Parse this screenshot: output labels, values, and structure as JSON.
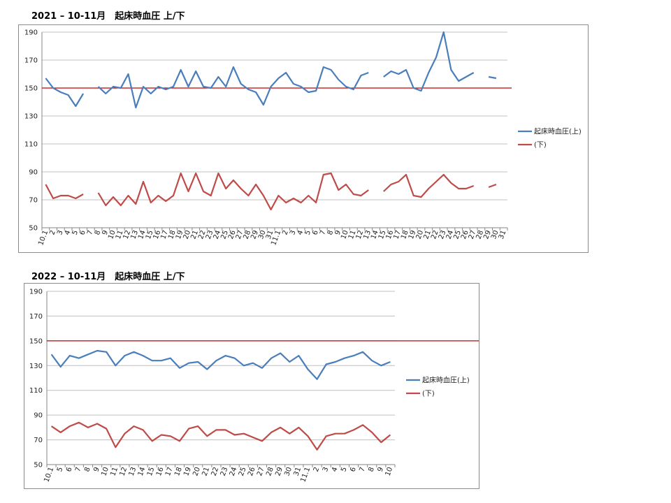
{
  "headings": {
    "chart1": "2021 – 10-11月　起床時血圧 上/下",
    "chart2": "2022 – 10-11月　起床時血圧 上/下"
  },
  "colors": {
    "upper": "#4a7ebb",
    "lower": "#be4b48",
    "reference": "#c00000",
    "grid": "#c0c0c0"
  },
  "chart_data": [
    {
      "type": "line",
      "title": "2021 – 10-11月　起床時血圧 上/下",
      "ylim": [
        50,
        190
      ],
      "yticks": [
        50,
        70,
        90,
        110,
        130,
        150,
        170,
        190
      ],
      "reference_line": 150,
      "legend_position": "right",
      "categories": [
        "10.1",
        "2",
        "3",
        "4",
        "5",
        "6",
        "7",
        "8",
        "9",
        "10",
        "11",
        "12",
        "13",
        "14",
        "15",
        "16",
        "17",
        "18",
        "19",
        "20",
        "21",
        "22",
        "23",
        "24",
        "25",
        "26",
        "27",
        "28",
        "29",
        "30",
        "31",
        "11.1",
        "2",
        "3",
        "4",
        "5",
        "6",
        "7",
        "8",
        "9",
        "10",
        "11",
        "12",
        "13",
        "14",
        "15",
        "16",
        "17",
        "18",
        "19",
        "20",
        "21",
        "22",
        "23",
        "24",
        "25",
        "26",
        "27",
        "28",
        "29",
        "30",
        "31"
      ],
      "series": [
        {
          "name": "起床時血圧(上)",
          "color": "#4a7ebb",
          "values": [
            157,
            150,
            147,
            145,
            137,
            146,
            null,
            151,
            146,
            151,
            150,
            160,
            136,
            151,
            146,
            151,
            149,
            151,
            163,
            151,
            162,
            151,
            150,
            158,
            151,
            165,
            153,
            149,
            147,
            138,
            151,
            157,
            161,
            153,
            151,
            147,
            148,
            165,
            163,
            156,
            151,
            149,
            159,
            161,
            null,
            158,
            162,
            160,
            163,
            150,
            148,
            161,
            172,
            190,
            163,
            155,
            158,
            161,
            null,
            158,
            157,
            null
          ]
        },
        {
          "name": "(下)",
          "color": "#be4b48",
          "values": [
            81,
            71,
            73,
            73,
            71,
            74,
            null,
            75,
            66,
            72,
            66,
            73,
            67,
            83,
            68,
            73,
            69,
            73,
            89,
            76,
            89,
            76,
            73,
            89,
            78,
            84,
            78,
            73,
            81,
            73,
            63,
            73,
            68,
            71,
            68,
            73,
            68,
            88,
            89,
            77,
            81,
            74,
            73,
            77,
            null,
            76,
            81,
            83,
            88,
            73,
            72,
            78,
            83,
            88,
            82,
            78,
            78,
            80,
            null,
            79,
            81,
            null
          ]
        }
      ]
    },
    {
      "type": "line",
      "title": "2022 – 10-11月　起床時血圧 上/下",
      "ylim": [
        50,
        190
      ],
      "yticks": [
        50,
        70,
        90,
        110,
        130,
        150,
        170,
        190
      ],
      "reference_line": 150,
      "legend_position": "right",
      "categories": [
        "10.1",
        "5",
        "6",
        "7",
        "8",
        "9",
        "10",
        "11",
        "12",
        "13",
        "14",
        "15",
        "16",
        "17",
        "18",
        "19",
        "20",
        "21",
        "22",
        "23",
        "24",
        "25",
        "26",
        "27",
        "28",
        "29",
        "30",
        "31",
        "11.1",
        "2",
        "3",
        "4",
        "5",
        "6",
        "7",
        "8",
        "9",
        "10"
      ],
      "series": [
        {
          "name": "起床時血圧(上)",
          "color": "#4a7ebb",
          "values": [
            139,
            129,
            138,
            136,
            139,
            142,
            141,
            130,
            138,
            141,
            138,
            134,
            134,
            136,
            128,
            132,
            133,
            127,
            134,
            138,
            136,
            130,
            132,
            128,
            136,
            140,
            133,
            138,
            127,
            119,
            131,
            133,
            136,
            138,
            141,
            134,
            130,
            133
          ]
        },
        {
          "name": "(下)",
          "color": "#be4b48",
          "values": [
            81,
            76,
            81,
            84,
            80,
            83,
            79,
            64,
            75,
            81,
            78,
            69,
            74,
            73,
            69,
            79,
            81,
            73,
            78,
            78,
            74,
            75,
            72,
            69,
            76,
            80,
            75,
            80,
            73,
            62,
            73,
            75,
            75,
            78,
            82,
            76,
            68,
            74
          ]
        }
      ]
    }
  ]
}
